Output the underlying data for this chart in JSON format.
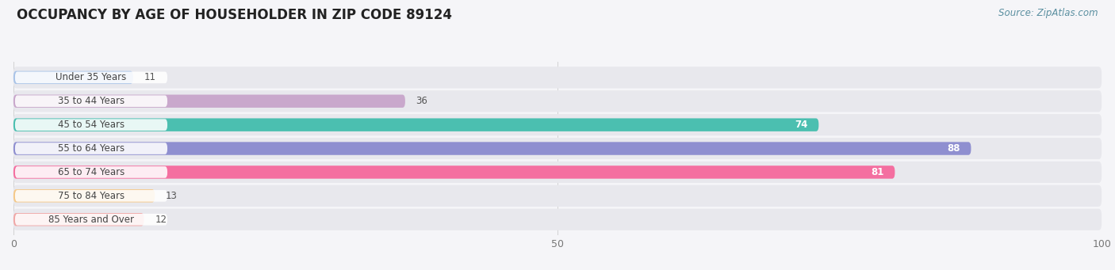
{
  "title": "OCCUPANCY BY AGE OF HOUSEHOLDER IN ZIP CODE 89124",
  "source": "Source: ZipAtlas.com",
  "categories": [
    "Under 35 Years",
    "35 to 44 Years",
    "45 to 54 Years",
    "55 to 64 Years",
    "65 to 74 Years",
    "75 to 84 Years",
    "85 Years and Over"
  ],
  "values": [
    11,
    36,
    74,
    88,
    81,
    13,
    12
  ],
  "bar_colors": [
    "#aac4e8",
    "#c9a8cc",
    "#4bbfb0",
    "#8f8fd0",
    "#f46fa0",
    "#f5c98a",
    "#f0a8a8"
  ],
  "row_bg_color": "#e8e8ed",
  "label_bg_color": "#ffffff",
  "fig_bg_color": "#f5f5f8",
  "xlim": [
    0,
    100
  ],
  "title_fontsize": 12,
  "label_fontsize": 8.5,
  "value_fontsize": 8.5,
  "source_fontsize": 8.5,
  "value_inside_color": "#ffffff",
  "value_outside_color": "#555555",
  "label_color": "#444444",
  "title_color": "#222222",
  "source_color": "#5a8fa0"
}
